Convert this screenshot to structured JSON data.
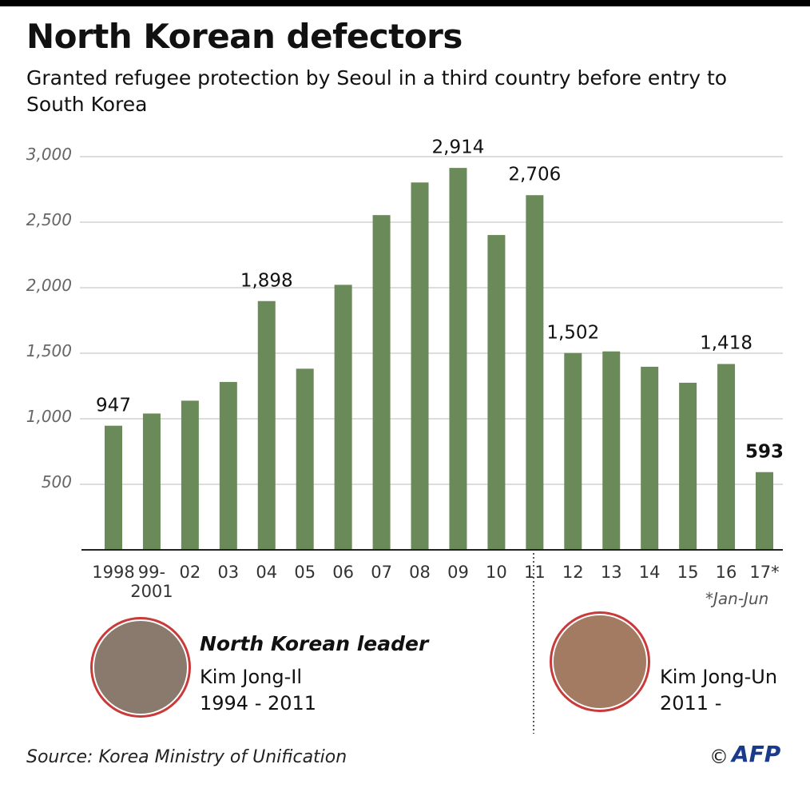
{
  "chart_data": {
    "type": "bar",
    "title": "North Korean defectors",
    "subtitle": "Granted refugee protection by Seoul in a third country before entry to South Korea",
    "categories": [
      "1998",
      "99-\n2001",
      "02",
      "03",
      "04",
      "05",
      "06",
      "07",
      "08",
      "09",
      "10",
      "11",
      "12",
      "13",
      "14",
      "15",
      "16",
      "17*"
    ],
    "values": [
      947,
      1040,
      1138,
      1281,
      1898,
      1382,
      2022,
      2554,
      2803,
      2914,
      2402,
      2706,
      1502,
      1514,
      1397,
      1275,
      1418,
      593
    ],
    "value_labels": [
      "947",
      null,
      null,
      null,
      "1,898",
      null,
      null,
      null,
      null,
      "2,914",
      null,
      "2,706",
      "1,502",
      null,
      null,
      null,
      "1,418",
      "593"
    ],
    "color": "#6b8a5a",
    "ylim": [
      0,
      3000
    ],
    "yticks": [
      500,
      {
        "value": 1000,
        "label": "1,000"
      },
      {
        "value": 1500,
        "label": "1,500"
      },
      {
        "value": 2000,
        "label": "2,000"
      },
      {
        "value": 2500,
        "label": "2,500"
      },
      {
        "value": 3000,
        "label": "3,000"
      }
    ],
    "grid": true,
    "footnote": "*Jan-Jun",
    "leader_heading": "North Korean leader",
    "leaders": [
      {
        "name": "Kim Jong-Il",
        "term": "1994 - 2011"
      },
      {
        "name": "Kim Jong-Un",
        "term": "2011 -"
      }
    ],
    "source": "Source: Korea Ministry of Unification",
    "credit": "AFP"
  }
}
